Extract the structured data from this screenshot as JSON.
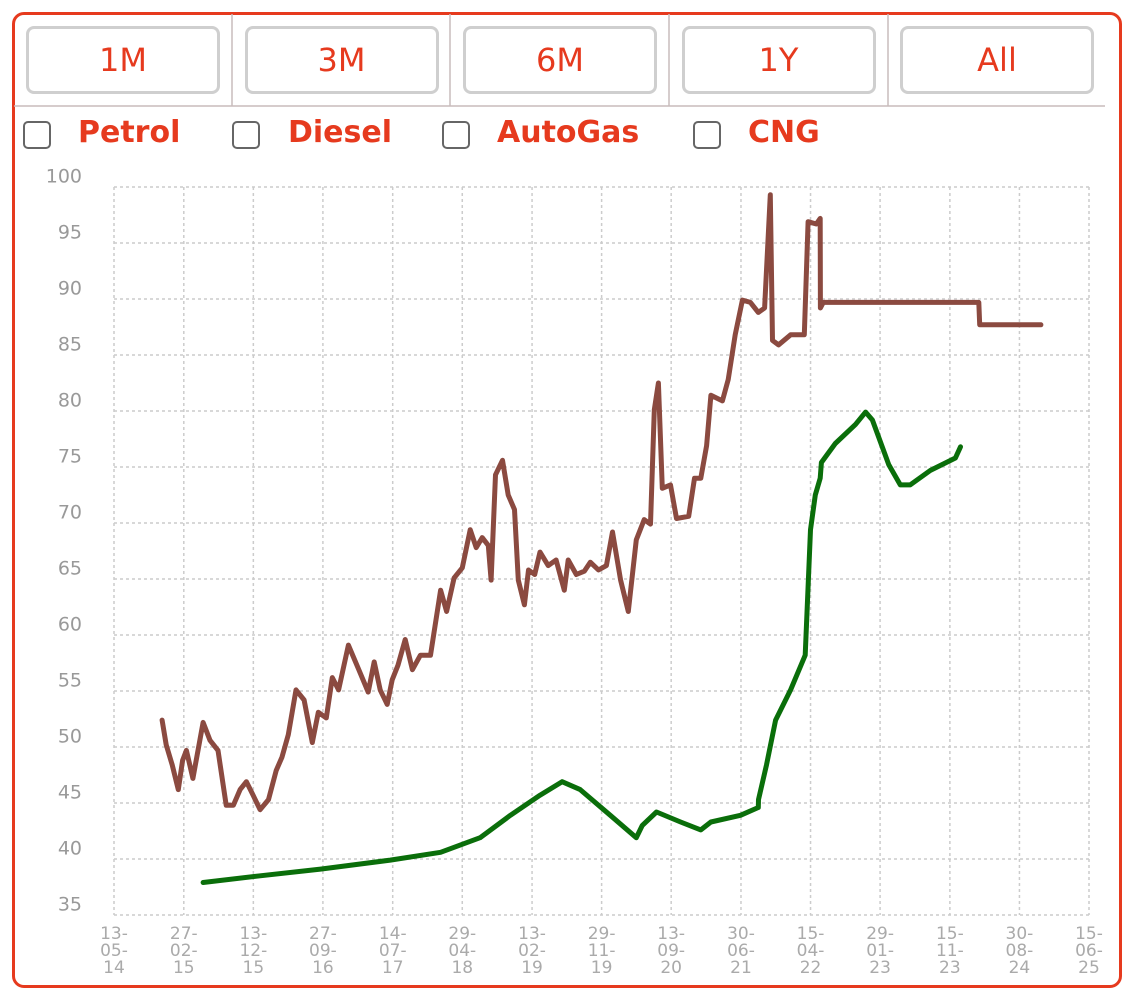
{
  "buttons": [
    "1M",
    "3M",
    "6M",
    "1Y",
    "All"
  ],
  "checkboxes": [
    "Petrol",
    "Diesel",
    "AutoGas",
    "CNG"
  ],
  "chart_data": {
    "type": "line",
    "xlim": [
      "2014-05-13",
      "2025-06-15"
    ],
    "ylim": [
      35,
      100
    ],
    "yticks": [
      35,
      40,
      45,
      50,
      55,
      60,
      65,
      70,
      75,
      80,
      85,
      90,
      95,
      100
    ],
    "xticks": [
      {
        "value": "2014-05-13",
        "label": "13-05-14"
      },
      {
        "value": "2015-02-27",
        "label": "27-02-15"
      },
      {
        "value": "2015-12-13",
        "label": "13-12-15"
      },
      {
        "value": "2016-09-27",
        "label": "27-09-16"
      },
      {
        "value": "2017-07-14",
        "label": "14-07-17"
      },
      {
        "value": "2018-04-29",
        "label": "29-04-18"
      },
      {
        "value": "2019-02-13",
        "label": "13-02-19"
      },
      {
        "value": "2019-11-29",
        "label": "29-11-19"
      },
      {
        "value": "2020-09-13",
        "label": "13-09-20"
      },
      {
        "value": "2021-06-30",
        "label": "30-06-21"
      },
      {
        "value": "2022-04-15",
        "label": "15-04-22"
      },
      {
        "value": "2023-01-29",
        "label": "29-01-23"
      },
      {
        "value": "2023-11-15",
        "label": "15-11-23"
      },
      {
        "value": "2024-08-30",
        "label": "30-08-24"
      },
      {
        "value": "2025-06-15",
        "label": "15-06-25"
      }
    ],
    "grid": true,
    "series": [
      {
        "color": "#8b4a40",
        "x": [
          "2014-11-29",
          "2014-12-16",
          "2015-01-10",
          "2015-02-04",
          "2015-02-22",
          "2015-03-10",
          "2015-04-06",
          "2015-05-18",
          "2015-06-16",
          "2015-07-19",
          "2015-08-22",
          "2015-09-21",
          "2015-10-19",
          "2015-11-14",
          "2015-12-12",
          "2016-01-10",
          "2016-02-14",
          "2016-03-17",
          "2016-04-10",
          "2016-05-06",
          "2016-06-07",
          "2016-07-11",
          "2016-08-14",
          "2016-09-08",
          "2016-10-11",
          "2016-11-05",
          "2016-12-01",
          "2017-01-11",
          "2017-02-23",
          "2017-04-03",
          "2017-04-28",
          "2017-05-23",
          "2017-06-21",
          "2017-07-12",
          "2017-08-05",
          "2017-09-04",
          "2017-10-04",
          "2017-11-06",
          "2017-12-18",
          "2018-01-29",
          "2018-02-23",
          "2018-03-26",
          "2018-04-29",
          "2018-06-01",
          "2018-06-26",
          "2018-07-21",
          "2018-08-15",
          "2018-08-27",
          "2018-09-14",
          "2018-10-13",
          "2018-11-06",
          "2018-12-02",
          "2018-12-18",
          "2019-01-12",
          "2019-01-29",
          "2019-02-24",
          "2019-03-18",
          "2019-04-21",
          "2019-05-24",
          "2019-06-27",
          "2019-07-13",
          "2019-08-16",
          "2019-09-18",
          "2019-10-13",
          "2019-11-16",
          "2019-12-19",
          "2020-01-13",
          "2020-02-16",
          "2020-03-19",
          "2020-04-21",
          "2020-05-24",
          "2020-06-19",
          "2020-07-05",
          "2020-07-22",
          "2020-08-07",
          "2020-09-10",
          "2020-10-05",
          "2020-11-25",
          "2020-12-19",
          "2021-01-14",
          "2021-02-07",
          "2021-02-25",
          "2021-04-14",
          "2021-05-08",
          "2021-06-06",
          "2021-07-06",
          "2021-08-08",
          "2021-09-10",
          "2021-10-06",
          "2021-10-30",
          "2021-11-08",
          "2021-12-03",
          "2022-01-22",
          "2022-03-20",
          "2022-04-05",
          "2022-05-09",
          "2022-05-25",
          "2022-05-26",
          "2022-06-07",
          "2024-03-14",
          "2024-03-18",
          "2024-11-27"
        ],
        "values": [
          52.4,
          50.2,
          48.4,
          46.2,
          48.8,
          49.7,
          47.2,
          52.2,
          50.6,
          49.7,
          44.8,
          44.8,
          46.2,
          46.9,
          45.7,
          44.4,
          45.3,
          47.9,
          49.1,
          51.1,
          55.1,
          54.2,
          50.4,
          53.1,
          52.6,
          56.2,
          55.1,
          59.1,
          56.9,
          54.9,
          57.6,
          55.1,
          53.8,
          56.0,
          57.3,
          59.6,
          56.9,
          58.2,
          58.2,
          64.0,
          62.1,
          65.1,
          66.0,
          69.4,
          67.8,
          68.7,
          68.0,
          64.9,
          74.3,
          75.6,
          72.5,
          71.2,
          64.9,
          62.7,
          65.8,
          65.4,
          67.4,
          66.2,
          66.7,
          64.0,
          66.7,
          65.4,
          65.7,
          66.5,
          65.8,
          66.2,
          69.2,
          64.9,
          62.1,
          68.5,
          70.3,
          69.9,
          80.1,
          82.5,
          73.1,
          73.4,
          70.4,
          70.6,
          74.0,
          74.0,
          76.9,
          81.4,
          80.9,
          82.8,
          86.8,
          89.9,
          89.7,
          88.8,
          89.2,
          99.3,
          86.3,
          85.9,
          86.8,
          86.8,
          96.9,
          96.7,
          97.2,
          89.2,
          89.7,
          89.7,
          87.7,
          87.7
        ]
      },
      {
        "color": "#0a6e0a",
        "x": [
          "2015-05-18",
          "2016-01-10",
          "2016-09-17",
          "2017-07-04",
          "2018-01-29",
          "2018-07-12",
          "2018-11-15",
          "2019-03-18",
          "2019-06-18",
          "2019-09-01",
          "2020-01-04",
          "2020-04-21",
          "2020-05-16",
          "2020-07-14",
          "2020-10-22",
          "2021-01-14",
          "2021-02-25",
          "2021-06-28",
          "2021-09-10",
          "2021-09-11",
          "2021-10-14",
          "2021-11-21",
          "2022-01-22",
          "2022-03-24",
          "2022-04-15",
          "2022-05-05",
          "2022-05-25",
          "2022-05-30",
          "2022-07-27",
          "2022-10-19",
          "2022-11-30",
          "2022-12-28",
          "2023-03-06",
          "2023-04-23",
          "2023-06-03",
          "2023-08-26",
          "2023-12-08",
          "2023-12-29"
        ],
        "values": [
          37.9,
          38.5,
          39.1,
          39.9,
          40.6,
          41.9,
          43.9,
          45.7,
          46.9,
          46.2,
          43.9,
          41.9,
          43.0,
          44.2,
          43.3,
          42.6,
          43.3,
          43.9,
          44.6,
          45.3,
          48.4,
          52.4,
          55.1,
          58.2,
          69.4,
          72.5,
          74.0,
          75.4,
          77.1,
          78.8,
          79.9,
          79.2,
          75.2,
          73.4,
          73.4,
          74.7,
          75.8,
          76.8
        ]
      }
    ]
  }
}
